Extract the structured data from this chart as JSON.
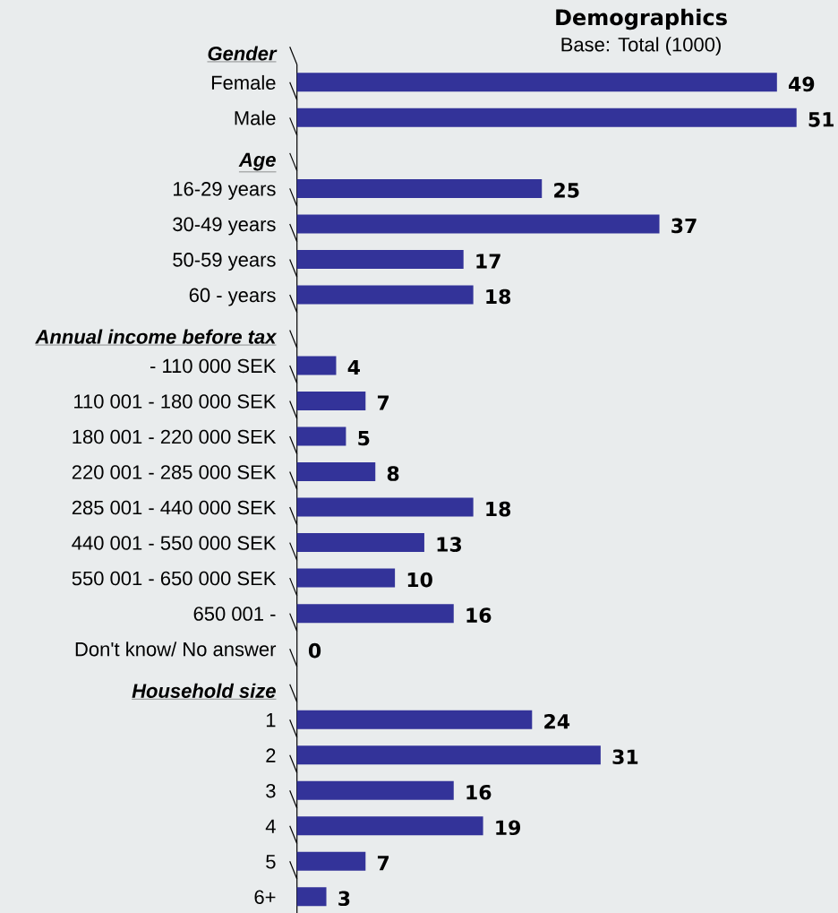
{
  "chart_data": {
    "type": "bar",
    "orientation": "horizontal",
    "title": "Demographics",
    "subtitle": "Base: Total (1000)",
    "categories": [
      "Gender",
      "Female",
      "Male",
      "Age",
      "16-29 years",
      "30-49 years",
      "50-59 years",
      "60 - years",
      "Annual income before tax",
      "- 110 000 SEK",
      "110 001 - 180 000 SEK",
      "180 001 - 220 000 SEK",
      "220 001 - 285 000 SEK",
      "285 001 - 440 000 SEK",
      "440 001 - 550 000 SEK",
      "550 001 - 650 000 SEK",
      "650 001 -",
      "Don't know/ No answer",
      "Household size",
      "1",
      "2",
      "3",
      "4",
      "5",
      "6+"
    ],
    "values": [
      null,
      49,
      51,
      null,
      25,
      37,
      17,
      18,
      null,
      4,
      7,
      5,
      8,
      18,
      13,
      10,
      16,
      0,
      null,
      24,
      31,
      16,
      19,
      7,
      3
    ],
    "color": "#333399",
    "data_labels": true
  }
}
